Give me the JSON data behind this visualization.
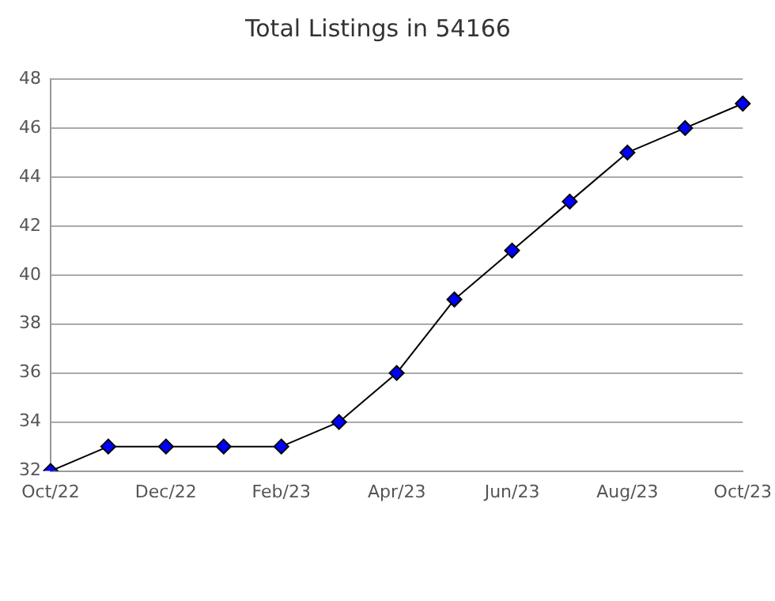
{
  "chart_data": {
    "type": "line",
    "title": "Total Listings in 54166",
    "categories": [
      "Oct/22",
      null,
      "Dec/22",
      null,
      "Feb/23",
      null,
      "Apr/23",
      null,
      "Jun/23",
      null,
      "Aug/23",
      null,
      "Oct/23"
    ],
    "series": [
      {
        "color": "#0000ff",
        "values": [
          32,
          33,
          33,
          33,
          33,
          34,
          36,
          39,
          41,
          43,
          45,
          46,
          47
        ]
      }
    ],
    "ylim": [
      32,
      48
    ],
    "yticks": [
      32,
      34,
      36,
      38,
      40,
      42,
      44,
      46,
      48
    ],
    "grid": "y",
    "marker": "diamond",
    "line_style": "solid",
    "legend": false
  }
}
